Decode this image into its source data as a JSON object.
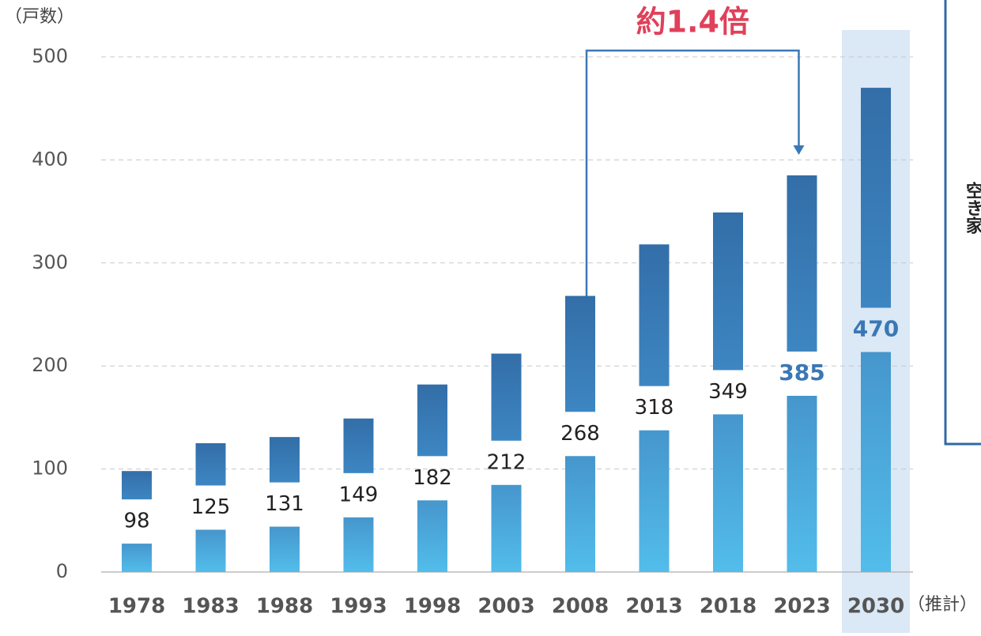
{
  "chart_data": {
    "type": "bar",
    "y_unit_label": "（戸数）",
    "categories": [
      "1978",
      "1983",
      "1988",
      "1993",
      "1998",
      "2003",
      "2008",
      "2013",
      "2018",
      "2023",
      "2030"
    ],
    "category_note": "（推計）",
    "values": [
      98,
      125,
      131,
      149,
      182,
      212,
      268,
      318,
      349,
      385,
      470
    ],
    "color": "#3a78b5",
    "light_color": "#4db8e8",
    "ylim": [
      0,
      500
    ],
    "yticks": [
      0,
      100,
      200,
      300,
      400,
      500
    ],
    "grid": true,
    "highlight": [
      "2023",
      "2030"
    ],
    "shaded_category": "2030",
    "annotation": {
      "text": "約1.4倍",
      "from": "2008",
      "to": "2023"
    },
    "side_note": "空き家"
  }
}
